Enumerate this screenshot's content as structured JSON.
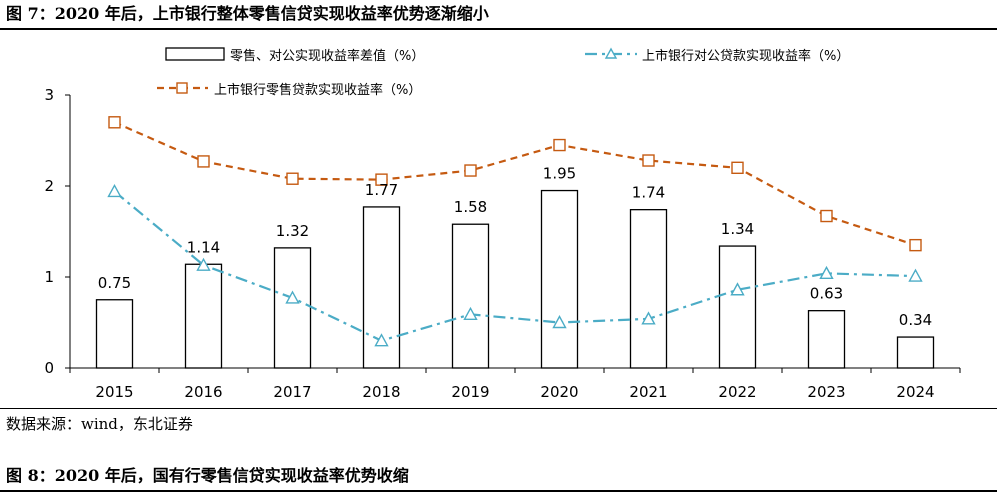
{
  "figure1": {
    "title": "图 7：2020 年后，上市银行整体零售信贷实现收益率优势逐渐缩小",
    "source": "数据来源：wind，东北证券"
  },
  "figure2": {
    "title": "图 8：2020 年后，国有行零售信贷实现收益率优势收缩"
  },
  "chart_data": {
    "type": "bar",
    "categories": [
      "2015",
      "2016",
      "2017",
      "2018",
      "2019",
      "2020",
      "2021",
      "2022",
      "2023",
      "2024"
    ],
    "ylim": [
      0,
      3
    ],
    "yticks": [
      "0",
      "1",
      "2",
      "3"
    ],
    "grid": false,
    "legend_position": "top",
    "series": [
      {
        "name": "零售、对公实现收益率差值（%）",
        "type": "bar",
        "values": [
          0.75,
          1.14,
          1.32,
          1.77,
          1.58,
          1.95,
          1.74,
          1.34,
          0.63,
          0.34
        ],
        "data_labels": [
          "0.75",
          "1.14",
          "1.32",
          "1.77",
          "1.58",
          "1.95",
          "1.74",
          "1.34",
          "0.63",
          "0.34"
        ],
        "color": "#000000"
      },
      {
        "name": "上市银行对公贷款实现收益率（%）",
        "type": "line",
        "style": "dash-dot",
        "marker": "triangle",
        "values": [
          1.94,
          1.13,
          0.77,
          0.3,
          0.59,
          0.5,
          0.54,
          0.86,
          1.04,
          1.01
        ],
        "color": "#4BACC6"
      },
      {
        "name": "上市银行零售贷款实现收益率（%）",
        "type": "line",
        "style": "dashed",
        "marker": "square",
        "values": [
          2.7,
          2.27,
          2.08,
          2.07,
          2.17,
          2.45,
          2.28,
          2.2,
          1.67,
          1.35
        ],
        "color": "#C55A11"
      }
    ]
  }
}
